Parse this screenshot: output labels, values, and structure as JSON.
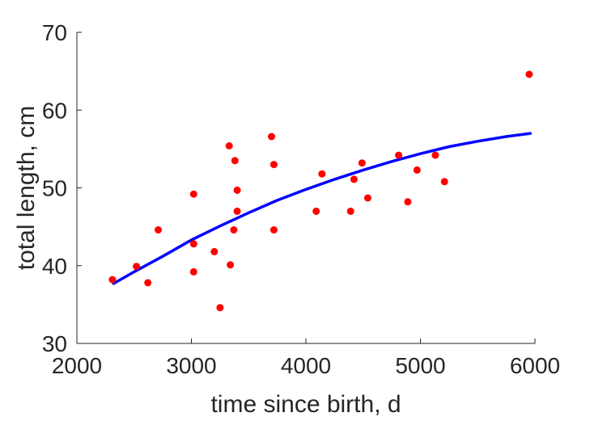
{
  "chart_data": {
    "type": "scatter",
    "title": "",
    "xlabel": "time since birth, d",
    "ylabel": "total length, cm",
    "xlim": [
      2000,
      6000
    ],
    "ylim": [
      30,
      70
    ],
    "xticks": [
      2000,
      3000,
      4000,
      5000,
      6000
    ],
    "yticks": [
      30,
      40,
      50,
      60,
      70
    ],
    "grid": false,
    "legend": "none",
    "series": [
      {
        "kind": "scatter",
        "color": "#ff0000",
        "points": [
          [
            2310,
            38.2
          ],
          [
            2520,
            39.9
          ],
          [
            2620,
            37.8
          ],
          [
            2710,
            44.6
          ],
          [
            3020,
            49.2
          ],
          [
            3020,
            42.8
          ],
          [
            3020,
            39.2
          ],
          [
            3200,
            41.8
          ],
          [
            3250,
            34.6
          ],
          [
            3330,
            55.4
          ],
          [
            3340,
            40.1
          ],
          [
            3370,
            44.6
          ],
          [
            3380,
            53.5
          ],
          [
            3400,
            47.0
          ],
          [
            3400,
            49.7
          ],
          [
            3700,
            56.6
          ],
          [
            3720,
            53.0
          ],
          [
            3720,
            44.6
          ],
          [
            4090,
            47.0
          ],
          [
            4140,
            51.8
          ],
          [
            4390,
            47.0
          ],
          [
            4420,
            51.1
          ],
          [
            4490,
            53.2
          ],
          [
            4540,
            48.7
          ],
          [
            4810,
            54.2
          ],
          [
            4890,
            48.2
          ],
          [
            4970,
            52.3
          ],
          [
            5130,
            54.2
          ],
          [
            5210,
            50.8
          ],
          [
            5950,
            64.6
          ]
        ]
      },
      {
        "kind": "line",
        "color": "#0000ff",
        "points": [
          [
            2320,
            37.7
          ],
          [
            2500,
            39.2
          ],
          [
            2750,
            41.2
          ],
          [
            3000,
            43.3
          ],
          [
            3250,
            45.1
          ],
          [
            3500,
            46.8
          ],
          [
            3750,
            48.4
          ],
          [
            4000,
            49.8
          ],
          [
            4250,
            51.1
          ],
          [
            4500,
            52.3
          ],
          [
            4750,
            53.4
          ],
          [
            5000,
            54.4
          ],
          [
            5250,
            55.3
          ],
          [
            5500,
            56.0
          ],
          [
            5750,
            56.6
          ],
          [
            5960,
            57.0
          ]
        ]
      }
    ]
  }
}
